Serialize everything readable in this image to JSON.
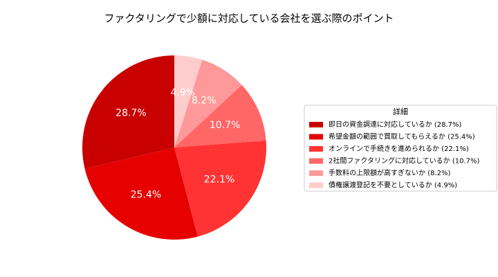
{
  "chart_data": {
    "type": "pie",
    "title": "ファクタリングで少額に対応している会社を選ぶ際のポイント",
    "legend_title": "詳細",
    "legend": "right",
    "categories": [
      "即日の資金調達に対応しているか (28.7%)",
      "希望金額の範囲で買取してもらえるか (25.4%)",
      "オンラインで手続きを進められるか (22.1%)",
      "2社間ファクタリングに対応しているか (10.7%)",
      "手数料の上限額が高すぎないか (8.2%)",
      "債権譲渡登記を不要としているか (4.9%)"
    ],
    "values": [
      28.7,
      25.4,
      22.1,
      10.7,
      8.2,
      4.9
    ],
    "value_labels": [
      "28.7%",
      "25.4%",
      "22.1%",
      "10.7%",
      "8.2%",
      "4.9%"
    ],
    "colors": [
      "#c80000",
      "#e60000",
      "#ff3333",
      "#ff6666",
      "#ff9999",
      "#ffcccc"
    ]
  }
}
